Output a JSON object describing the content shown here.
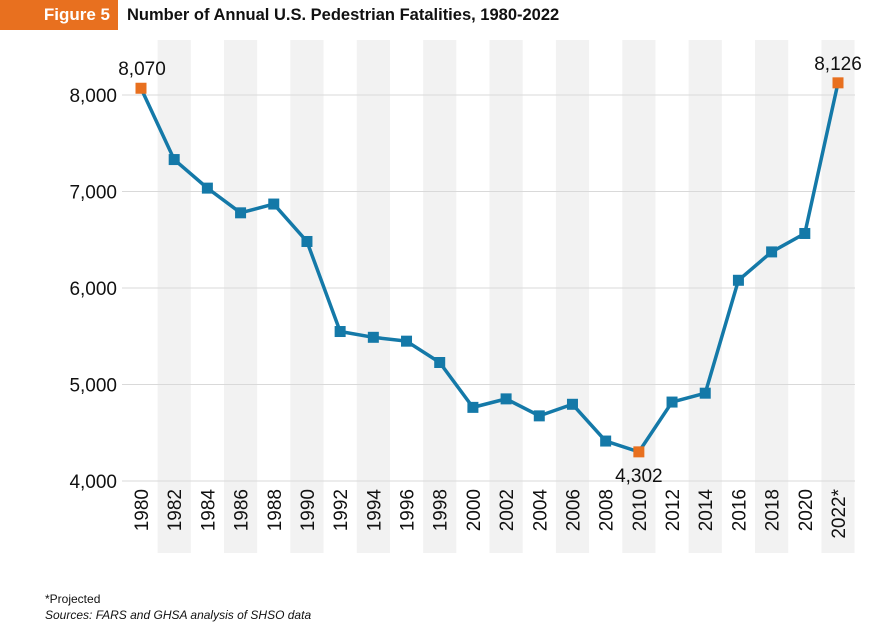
{
  "header": {
    "figure_label": "Figure 5",
    "title": "Number of Annual U.S. Pedestrian Fatalities, 1980-2022"
  },
  "footer": {
    "note": "*Projected",
    "sources": "Sources: FARS and GHSA analysis of SHSO data"
  },
  "colors": {
    "line": "#1479a8",
    "highlight": "#e8701f",
    "band": "#f2f2f2",
    "grid": "#d9d9d9"
  },
  "chart_data": {
    "type": "line",
    "title": "Number of Annual U.S. Pedestrian Fatalities, 1980-2022",
    "xlabel": "",
    "ylabel": "",
    "ylim": [
      4000,
      8000
    ],
    "yticks": [
      4000,
      5000,
      6000,
      7000,
      8000
    ],
    "ytick_labels": [
      "4,000",
      "5,000",
      "6,000",
      "7,000",
      "8,000"
    ],
    "x": [
      1980,
      1982,
      1984,
      1986,
      1988,
      1990,
      1992,
      1994,
      1996,
      1998,
      2000,
      2002,
      2004,
      2006,
      2008,
      2010,
      2012,
      2014,
      2016,
      2018,
      2020,
      2022
    ],
    "xtick_labels": [
      "1980",
      "1982",
      "1984",
      "1986",
      "1988",
      "1990",
      "1992",
      "1994",
      "1996",
      "1998",
      "2000",
      "2002",
      "2004",
      "2006",
      "2008",
      "2010",
      "2012",
      "2014",
      "2016",
      "2018",
      "2020",
      "2022*"
    ],
    "series": [
      {
        "name": "Pedestrian fatalities",
        "values": [
          8070,
          7331,
          7035,
          6779,
          6870,
          6482,
          5549,
          5489,
          5449,
          5228,
          4763,
          4851,
          4675,
          4795,
          4414,
          4302,
          4818,
          4910,
          6080,
          6374,
          6565,
          8126
        ]
      }
    ],
    "highlighted": [
      {
        "x": 1980,
        "label": "8,070"
      },
      {
        "x": 2010,
        "label": "4,302"
      },
      {
        "x": 2022,
        "label": "8,126"
      }
    ],
    "grid": true,
    "legend": "none"
  }
}
